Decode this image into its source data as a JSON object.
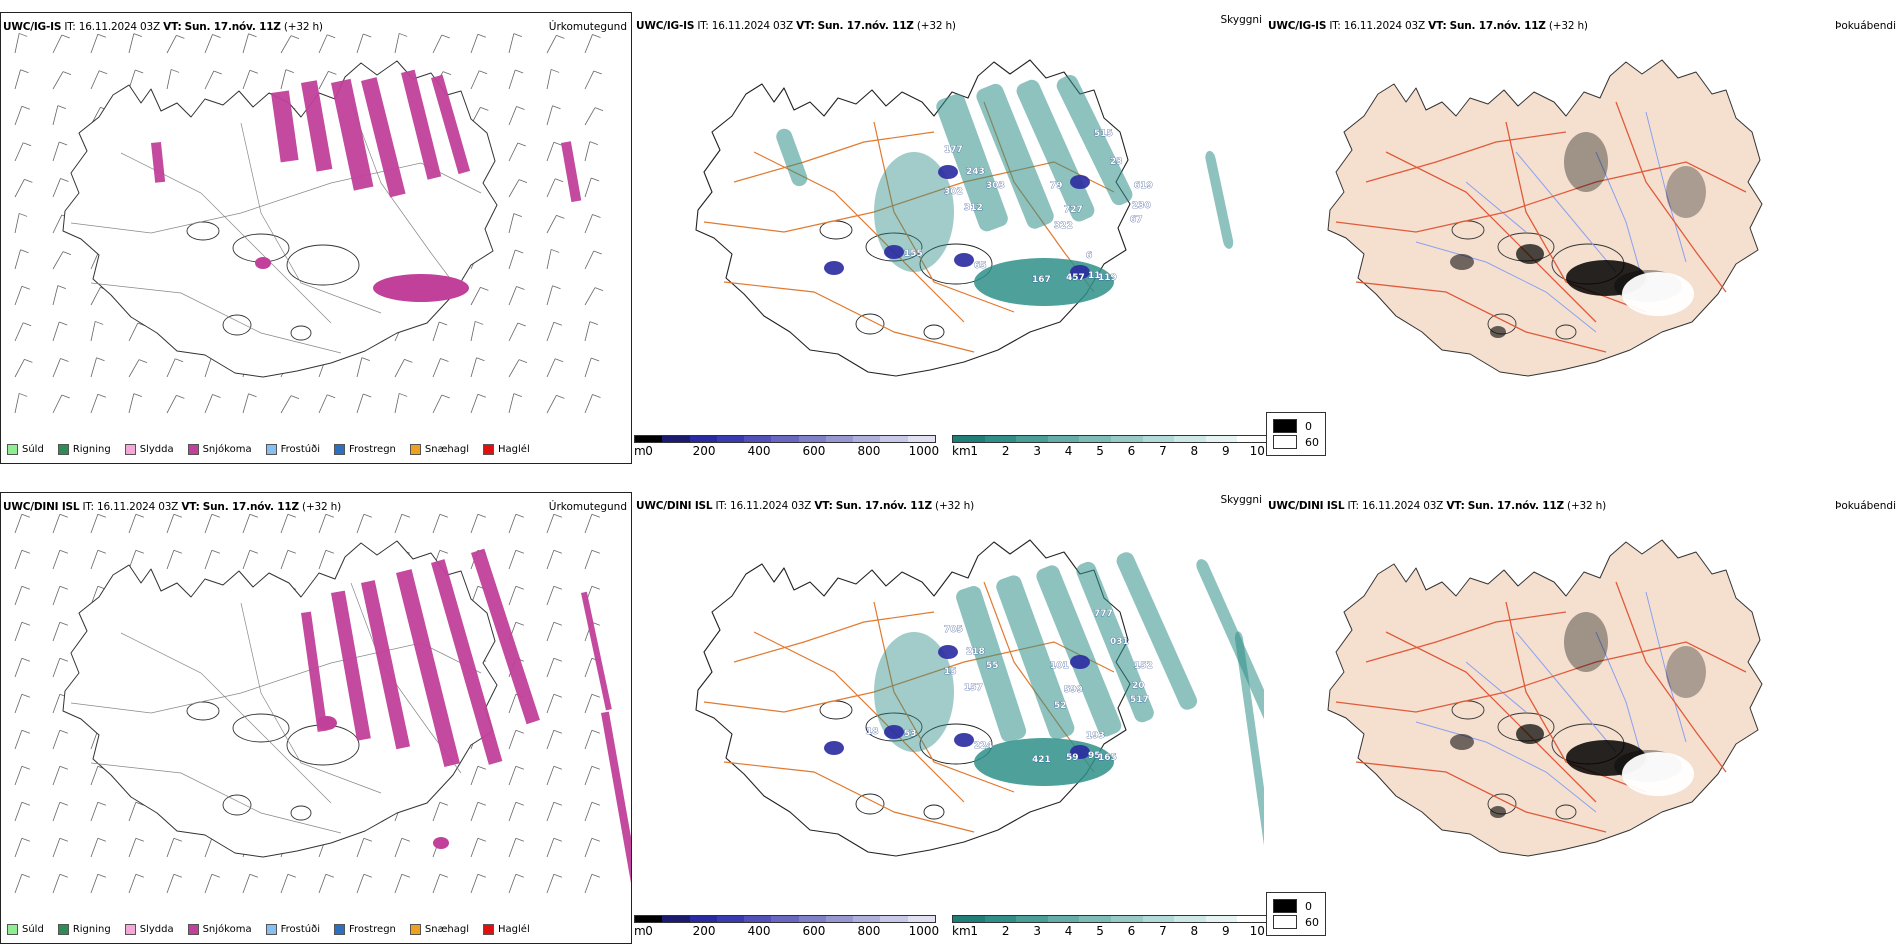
{
  "panels": {
    "r1_precip": {
      "model": "UWC/IG-IS",
      "it_label": "IT:",
      "it": "16.11.2024 03Z",
      "vt_label": "VT:",
      "vt": "Sun. 17.nóv. 11Z",
      "lead": "(+32 h)",
      "product": "Úrkomutegund"
    },
    "r1_cloud": {
      "model": "UWC/IG-IS",
      "it_label": "IT:",
      "it": "16.11.2024 03Z",
      "vt_label": "VT:",
      "vt": "Sun. 17.nóv. 11Z",
      "lead": "(+32 h)",
      "product": "Skyggni"
    },
    "r1_fog": {
      "model": "UWC/IG-IS",
      "it_label": "IT:",
      "it": "16.11.2024 03Z",
      "vt_label": "VT:",
      "vt": "Sun. 17.nóv. 11Z",
      "lead": "(+32 h)",
      "product": "Þokuábendi"
    },
    "r2_precip": {
      "model": "UWC/DINI ISL",
      "it_label": "IT:",
      "it": "16.11.2024 03Z",
      "vt_label": "VT:",
      "vt": "Sun. 17.nóv. 11Z",
      "lead": "(+32 h)",
      "product": "Úrkomutegund"
    },
    "r2_cloud": {
      "model": "UWC/DINI ISL",
      "it_label": "IT:",
      "it": "16.11.2024 03Z",
      "vt_label": "VT:",
      "vt": "Sun. 17.nóv. 11Z",
      "lead": "(+32 h)",
      "product": "Skyggni"
    },
    "r2_fog": {
      "model": "UWC/DINI ISL",
      "it_label": "IT:",
      "it": "16.11.2024 03Z",
      "vt_label": "VT:",
      "vt": "Sun. 17.nóv. 11Z",
      "lead": "(+32 h)",
      "product": "Þokuábendi"
    }
  },
  "precip_legend": [
    {
      "label": "Súld",
      "color": "#90ee90"
    },
    {
      "label": "Rigning",
      "color": "#2e8b57"
    },
    {
      "label": "Slydda",
      "color": "#f4a7d8"
    },
    {
      "label": "Snjókoma",
      "color": "#c0409a"
    },
    {
      "label": "Frostúði",
      "color": "#87bff0"
    },
    {
      "label": "Frostregn",
      "color": "#2f6fbf"
    },
    {
      "label": "Snæhagl",
      "color": "#f0a020"
    },
    {
      "label": "Haglél",
      "color": "#e01010"
    }
  ],
  "cloud_base_bar": {
    "unit": "m",
    "ticks": [
      "0",
      "200",
      "400",
      "600",
      "800",
      "1000"
    ]
  },
  "visibility_bar": {
    "unit": "km",
    "ticks": [
      "1",
      "2",
      "3",
      "4",
      "5",
      "6",
      "7",
      "8",
      "9",
      "10"
    ]
  },
  "fog_legend": [
    {
      "label": "0",
      "color": "#000000"
    },
    {
      "label": "60",
      "color": "#ffffff"
    }
  ],
  "cloud_labels_r1": [
    "177",
    "243",
    "302",
    "303",
    "312",
    "515",
    "23",
    "619",
    "230",
    "67",
    "79",
    "727",
    "322",
    "167",
    "155",
    "65",
    "457",
    "11",
    "6",
    "119"
  ],
  "cloud_labels_r2": [
    "705",
    "218",
    "15",
    "55",
    "157",
    "777",
    "031",
    "152",
    "20",
    "517",
    "101",
    "599",
    "52",
    "421",
    "53",
    "224",
    "59",
    "95",
    "193",
    "165",
    "18"
  ],
  "colors": {
    "snow": "#c0409a",
    "teal": "#2f8f88",
    "navy": "#2a2aa0",
    "land_fog": "#f5e0d0",
    "road": "#e07a30",
    "road_fog": "#e05a3a",
    "river": "#8aa0f0"
  }
}
